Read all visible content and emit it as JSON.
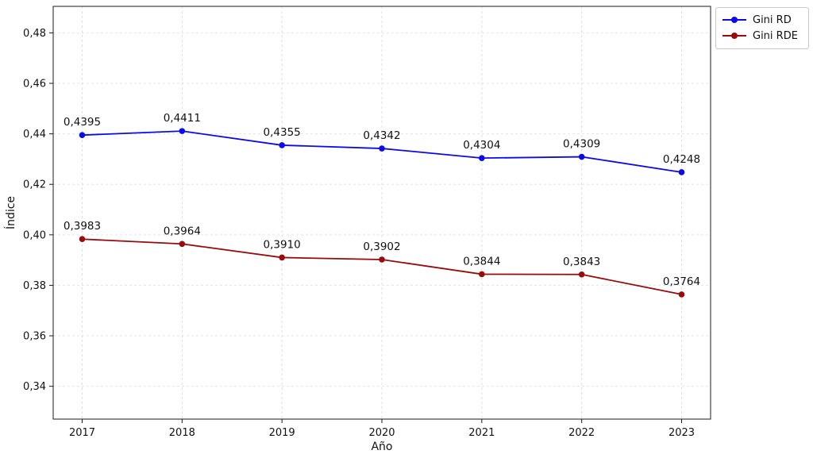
{
  "chart_data": {
    "type": "line",
    "x": [
      2017,
      2018,
      2019,
      2020,
      2021,
      2022,
      2023
    ],
    "xtick_labels": [
      "2017",
      "2018",
      "2019",
      "2020",
      "2021",
      "2022",
      "2023"
    ],
    "series": [
      {
        "name": "Gini RD",
        "color": "#0b0bea",
        "values": [
          0.4395,
          0.4411,
          0.4355,
          0.4342,
          0.4304,
          0.4309,
          0.4248
        ],
        "point_labels": [
          "0,4395",
          "0,4411",
          "0,4355",
          "0,4342",
          "0,4304",
          "0,4309",
          "0,4248"
        ]
      },
      {
        "name": "Gini RDE",
        "color": "#990b0b",
        "values": [
          0.3983,
          0.3964,
          0.391,
          0.3902,
          0.3844,
          0.3843,
          0.3764
        ],
        "point_labels": [
          "0,3983",
          "0,3964",
          "0,3910",
          "0,3902",
          "0,3844",
          "0,3843",
          "0,3764"
        ]
      }
    ],
    "title": "",
    "xlabel": "Año",
    "ylabel": "Índice",
    "xlim": [
      2016.71,
      2023.29
    ],
    "ylim": [
      0.327,
      0.4905
    ],
    "yticks": [
      0.34,
      0.36,
      0.38,
      0.4,
      0.42,
      0.44,
      0.46,
      0.48
    ],
    "ytick_labels": [
      "0,34",
      "0,36",
      "0,38",
      "0,40",
      "0,42",
      "0,44",
      "0,46",
      "0,48"
    ],
    "grid": true,
    "grid_style": "dashed",
    "legend_position": "upper-right-outside"
  },
  "legend": {
    "items": [
      {
        "label": "Gini RD"
      },
      {
        "label": "Gini RDE"
      }
    ]
  }
}
